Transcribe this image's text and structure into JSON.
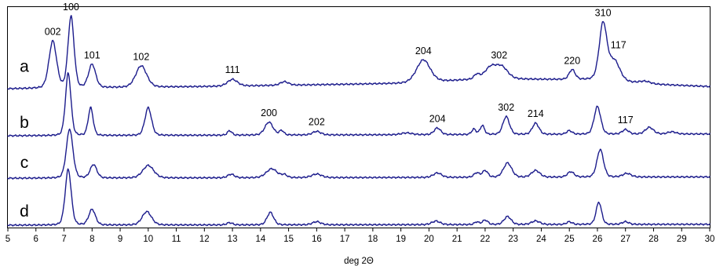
{
  "chart_data": {
    "type": "line",
    "xlabel": "deg 2Θ",
    "xlim": [
      5,
      30
    ],
    "x_ticks": [
      "5",
      "6",
      "7",
      "8",
      "9",
      "10",
      "11",
      "12",
      "13",
      "14",
      "15",
      "16",
      "17",
      "18",
      "19",
      "20",
      "21",
      "22",
      "23",
      "24",
      "25",
      "26",
      "27",
      "28",
      "29",
      "30"
    ],
    "grid": false,
    "series": [
      {
        "name": "a",
        "baseline_au": 3.05,
        "background": [
          [
            5,
            0.0
          ],
          [
            12,
            0.05
          ],
          [
            19,
            0.12
          ],
          [
            22,
            0.22
          ],
          [
            26,
            0.2
          ],
          [
            28,
            0.1
          ],
          [
            30,
            0.05
          ]
        ],
        "peaks": [
          {
            "x": 6.6,
            "h": 1.05,
            "w": 0.14
          },
          {
            "x": 7.25,
            "h": 1.6,
            "w": 0.11
          },
          {
            "x": 8.0,
            "h": 0.52,
            "w": 0.13
          },
          {
            "x": 9.75,
            "h": 0.48,
            "w": 0.2
          },
          {
            "x": 13.0,
            "h": 0.15,
            "w": 0.18
          },
          {
            "x": 14.85,
            "h": 0.08,
            "w": 0.15
          },
          {
            "x": 19.8,
            "h": 0.5,
            "w": 0.25
          },
          {
            "x": 21.7,
            "h": 0.1,
            "w": 0.1
          },
          {
            "x": 22.2,
            "h": 0.25,
            "w": 0.22
          },
          {
            "x": 22.6,
            "h": 0.25,
            "w": 0.22
          },
          {
            "x": 25.1,
            "h": 0.22,
            "w": 0.11
          },
          {
            "x": 26.2,
            "h": 1.25,
            "w": 0.14
          },
          {
            "x": 26.6,
            "h": 0.45,
            "w": 0.2
          },
          {
            "x": 27.7,
            "h": 0.05,
            "w": 0.2
          }
        ],
        "annotations": [
          {
            "label": "002",
            "x": 6.6
          },
          {
            "label": "100",
            "x": 7.25
          },
          {
            "label": "101",
            "x": 8.0
          },
          {
            "label": "102",
            "x": 9.75
          },
          {
            "label": "111",
            "x": 13.0
          },
          {
            "label": "204",
            "x": 19.8
          },
          {
            "label": "302",
            "x": 22.5
          },
          {
            "label": "220",
            "x": 25.1
          },
          {
            "label": "310",
            "x": 26.2
          },
          {
            "label": "117",
            "x": 26.75
          }
        ]
      },
      {
        "name": "b",
        "baseline_au": 2.0,
        "background": [
          [
            5,
            0.0
          ],
          [
            30,
            0.04
          ]
        ],
        "peaks": [
          {
            "x": 7.15,
            "h": 1.4,
            "w": 0.1
          },
          {
            "x": 7.95,
            "h": 0.62,
            "w": 0.09
          },
          {
            "x": 10.0,
            "h": 0.62,
            "w": 0.12
          },
          {
            "x": 12.9,
            "h": 0.1,
            "w": 0.08
          },
          {
            "x": 14.3,
            "h": 0.29,
            "w": 0.15
          },
          {
            "x": 14.75,
            "h": 0.1,
            "w": 0.08
          },
          {
            "x": 16.0,
            "h": 0.08,
            "w": 0.15
          },
          {
            "x": 19.2,
            "h": 0.04,
            "w": 0.2
          },
          {
            "x": 20.3,
            "h": 0.15,
            "w": 0.12
          },
          {
            "x": 21.6,
            "h": 0.12,
            "w": 0.08
          },
          {
            "x": 21.9,
            "h": 0.2,
            "w": 0.08
          },
          {
            "x": 22.75,
            "h": 0.4,
            "w": 0.12
          },
          {
            "x": 23.8,
            "h": 0.25,
            "w": 0.12
          },
          {
            "x": 25.0,
            "h": 0.08,
            "w": 0.1
          },
          {
            "x": 26.0,
            "h": 0.62,
            "w": 0.12
          },
          {
            "x": 27.0,
            "h": 0.1,
            "w": 0.12
          },
          {
            "x": 27.85,
            "h": 0.15,
            "w": 0.15
          },
          {
            "x": 28.65,
            "h": 0.05,
            "w": 0.15
          }
        ],
        "annotations": [
          {
            "label": "200",
            "x": 14.3
          },
          {
            "label": "202",
            "x": 16.0
          },
          {
            "label": "204",
            "x": 20.3
          },
          {
            "label": "302",
            "x": 22.75
          },
          {
            "label": "214",
            "x": 23.8
          },
          {
            "label": "117",
            "x": 27.0
          }
        ]
      },
      {
        "name": "c",
        "baseline_au": 1.05,
        "background": [
          [
            5,
            0.0
          ],
          [
            30,
            0.03
          ]
        ],
        "peaks": [
          {
            "x": 7.2,
            "h": 1.1,
            "w": 0.12
          },
          {
            "x": 8.05,
            "h": 0.3,
            "w": 0.12
          },
          {
            "x": 10.0,
            "h": 0.28,
            "w": 0.2
          },
          {
            "x": 12.95,
            "h": 0.08,
            "w": 0.12
          },
          {
            "x": 14.4,
            "h": 0.2,
            "w": 0.2
          },
          {
            "x": 14.85,
            "h": 0.06,
            "w": 0.1
          },
          {
            "x": 16.0,
            "h": 0.08,
            "w": 0.18
          },
          {
            "x": 20.3,
            "h": 0.1,
            "w": 0.15
          },
          {
            "x": 21.7,
            "h": 0.1,
            "w": 0.1
          },
          {
            "x": 22.0,
            "h": 0.15,
            "w": 0.1
          },
          {
            "x": 22.8,
            "h": 0.32,
            "w": 0.15
          },
          {
            "x": 23.8,
            "h": 0.15,
            "w": 0.15
          },
          {
            "x": 25.05,
            "h": 0.12,
            "w": 0.12
          },
          {
            "x": 26.1,
            "h": 0.62,
            "w": 0.12
          },
          {
            "x": 27.05,
            "h": 0.08,
            "w": 0.15
          }
        ],
        "annotations": []
      },
      {
        "name": "d",
        "baseline_au": 0.0,
        "background": [
          [
            5,
            0.0
          ],
          [
            30,
            0.02
          ]
        ],
        "peaks": [
          {
            "x": 7.15,
            "h": 1.25,
            "w": 0.11
          },
          {
            "x": 8.0,
            "h": 0.35,
            "w": 0.12
          },
          {
            "x": 9.95,
            "h": 0.3,
            "w": 0.17
          },
          {
            "x": 12.9,
            "h": 0.05,
            "w": 0.1
          },
          {
            "x": 14.35,
            "h": 0.28,
            "w": 0.12
          },
          {
            "x": 16.0,
            "h": 0.07,
            "w": 0.15
          },
          {
            "x": 20.25,
            "h": 0.08,
            "w": 0.15
          },
          {
            "x": 21.7,
            "h": 0.06,
            "w": 0.08
          },
          {
            "x": 22.0,
            "h": 0.1,
            "w": 0.1
          },
          {
            "x": 22.8,
            "h": 0.18,
            "w": 0.13
          },
          {
            "x": 23.8,
            "h": 0.08,
            "w": 0.15
          },
          {
            "x": 25.0,
            "h": 0.06,
            "w": 0.1
          },
          {
            "x": 26.05,
            "h": 0.5,
            "w": 0.1
          },
          {
            "x": 27.0,
            "h": 0.06,
            "w": 0.12
          }
        ],
        "annotations": []
      }
    ],
    "trace_color": "#1c1c8c"
  }
}
